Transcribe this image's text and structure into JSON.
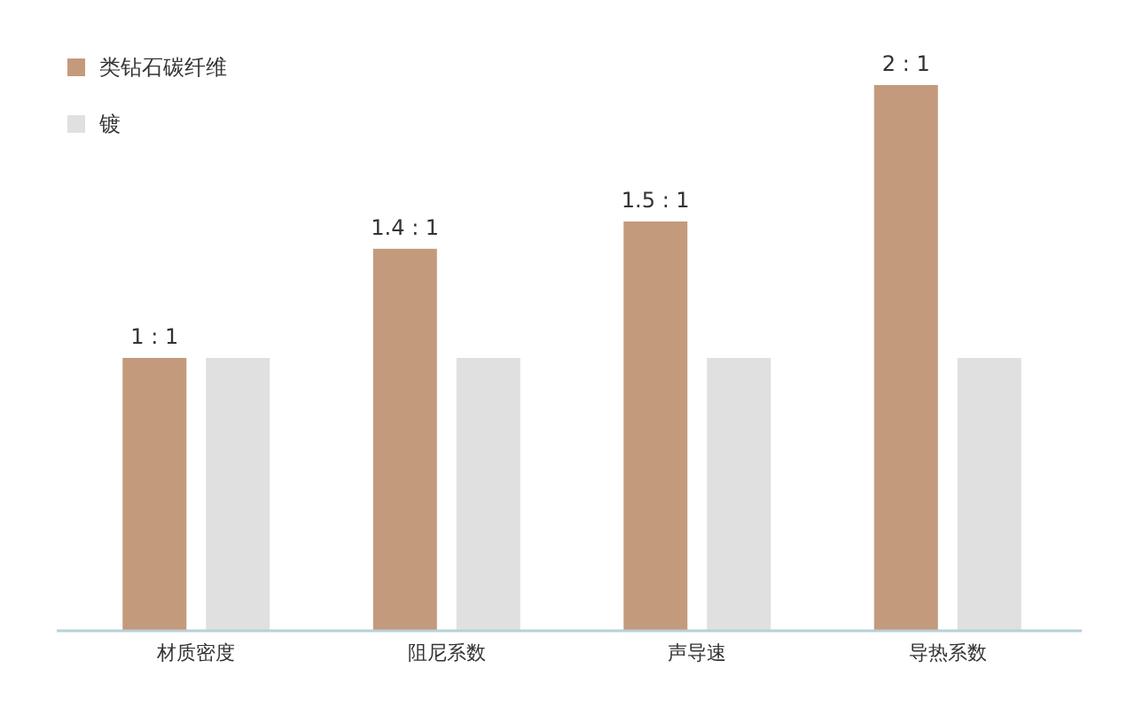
{
  "chart_data": {
    "type": "bar",
    "categories": [
      "材质密度",
      "阻尼系数",
      "声导速",
      "导热系数"
    ],
    "series": [
      {
        "name": "类钻石碳纤维",
        "color": "#c49a7c",
        "values": [
          1,
          1.4,
          1.5,
          2
        ],
        "value_labels": [
          "1 : 1",
          "1.4 : 1",
          "1.5 : 1",
          "2 : 1"
        ]
      },
      {
        "name": "镀",
        "color": "#e0e0e0",
        "values": [
          1,
          1,
          1,
          1
        ]
      }
    ],
    "legend": "top left",
    "grid": false
  }
}
